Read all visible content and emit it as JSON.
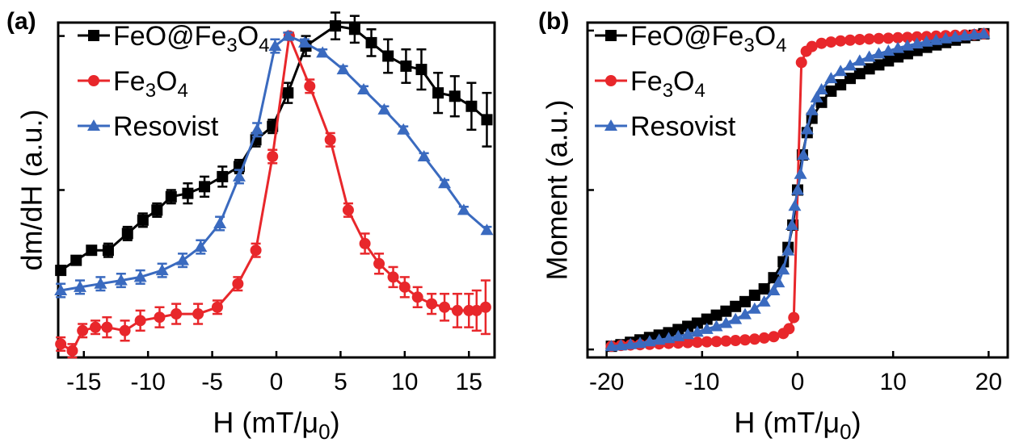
{
  "chart_data": [
    {
      "type": "line",
      "panel_label": "(a)",
      "xlabel": "H (mT/μ0)",
      "xlabel_parts": [
        "H (mT/μ",
        "0",
        ")"
      ],
      "ylabel": "dm/dH (a.u.)",
      "xlim": [
        -17,
        17
      ],
      "ylim": [
        0,
        1
      ],
      "xticks": [
        -15,
        -10,
        -5,
        0,
        5,
        10,
        15
      ],
      "xtick_labels": [
        "-15",
        "-10",
        "-5",
        "0",
        "5",
        "10",
        "15"
      ],
      "yticks": [
        0.0,
        0.5,
        0.96
      ],
      "ytick_labels_shown": false,
      "grid": false,
      "legend_position": "top-left",
      "series": [
        {
          "name": "FeO@Fe3O4",
          "name_parts": [
            "FeO@Fe",
            "3",
            "O",
            "4"
          ],
          "color": "#000000",
          "marker": "square",
          "x": [
            -16.8,
            -15.6,
            -14.4,
            -13.1,
            -11.6,
            -10.4,
            -9.3,
            -8.2,
            -6.9,
            -5.6,
            -4.2,
            -2.9,
            -1.6,
            -0.3,
            0.9,
            2.3,
            4.6,
            6.1,
            7.4,
            8.7,
            10.1,
            11.3,
            12.6,
            13.9,
            15.2,
            16.4
          ],
          "y": [
            0.26,
            0.29,
            0.32,
            0.32,
            0.37,
            0.41,
            0.44,
            0.48,
            0.49,
            0.51,
            0.54,
            0.57,
            0.65,
            0.69,
            0.79,
            0.93,
            0.99,
            0.98,
            0.94,
            0.9,
            0.87,
            0.86,
            0.79,
            0.78,
            0.75,
            0.71
          ],
          "err": [
            0.01,
            0.01,
            0.01,
            0.02,
            0.02,
            0.02,
            0.02,
            0.02,
            0.03,
            0.03,
            0.03,
            0.02,
            0.02,
            0.02,
            0.03,
            0.03,
            0.04,
            0.04,
            0.04,
            0.05,
            0.05,
            0.06,
            0.06,
            0.06,
            0.07,
            0.08
          ]
        },
        {
          "name": "Fe3O4",
          "name_parts": [
            "Fe",
            "3",
            "O",
            "4"
          ],
          "color": "#e8272b",
          "marker": "circle",
          "x": [
            -16.8,
            -15.9,
            -15.1,
            -14.1,
            -13.2,
            -11.8,
            -10.6,
            -9.1,
            -7.8,
            -6.1,
            -4.6,
            -3.0,
            -1.6,
            -0.3,
            1.0,
            2.6,
            4.2,
            5.6,
            6.9,
            8.0,
            9.1,
            10.0,
            11.0,
            12.1,
            13.1,
            14.1,
            15.0,
            15.6,
            16.3
          ],
          "y": [
            0.04,
            0.02,
            0.08,
            0.09,
            0.09,
            0.08,
            0.11,
            0.12,
            0.13,
            0.13,
            0.15,
            0.22,
            0.32,
            0.6,
            0.96,
            0.81,
            0.65,
            0.44,
            0.34,
            0.28,
            0.24,
            0.21,
            0.18,
            0.16,
            0.15,
            0.14,
            0.14,
            0.14,
            0.15
          ],
          "err": [
            0.02,
            0.02,
            0.02,
            0.02,
            0.03,
            0.03,
            0.03,
            0.03,
            0.03,
            0.03,
            0.02,
            0.02,
            0.02,
            0.02,
            0.01,
            0.02,
            0.02,
            0.02,
            0.03,
            0.03,
            0.03,
            0.03,
            0.03,
            0.03,
            0.04,
            0.05,
            0.05,
            0.06,
            0.08
          ]
        },
        {
          "name": "Resovist",
          "name_parts": [
            "Resovist"
          ],
          "color": "#3a6abf",
          "marker": "triangle",
          "x": [
            -16.8,
            -15.3,
            -13.7,
            -12.1,
            -10.6,
            -8.9,
            -7.3,
            -5.9,
            -4.4,
            -2.9,
            -1.5,
            -0.1,
            0.9,
            2.2,
            3.6,
            5.2,
            6.8,
            8.4,
            9.9,
            11.5,
            13.1,
            14.6,
            16.4
          ],
          "y": [
            0.2,
            0.21,
            0.22,
            0.23,
            0.24,
            0.26,
            0.29,
            0.33,
            0.4,
            0.54,
            0.68,
            0.93,
            0.96,
            0.94,
            0.91,
            0.86,
            0.8,
            0.74,
            0.68,
            0.6,
            0.52,
            0.44,
            0.38
          ],
          "err": [
            0.02,
            0.02,
            0.02,
            0.02,
            0.02,
            0.02,
            0.02,
            0.02,
            0.02,
            0.02,
            0.02,
            0.02,
            0.01,
            0.01,
            0.01,
            0.01,
            0.01,
            0.01,
            0.01,
            0.01,
            0.01,
            0.01,
            0.01
          ]
        }
      ]
    },
    {
      "type": "line",
      "panel_label": "(b)",
      "xlabel": "H (mT/μ0)",
      "xlabel_parts": [
        "H (mT/μ",
        "0",
        ")"
      ],
      "ylabel": "Moment (a.u.)",
      "xlim": [
        -22,
        22
      ],
      "ylim": [
        -1.05,
        1.05
      ],
      "xticks": [
        -20,
        -10,
        0,
        10,
        20
      ],
      "xtick_labels": [
        "-20",
        "-10",
        "0",
        "10",
        "20"
      ],
      "yticks": [
        -1,
        0,
        1
      ],
      "ytick_labels_shown": false,
      "grid": false,
      "legend_position": "top-left",
      "series": [
        {
          "name": "FeO@Fe3O4",
          "name_parts": [
            "FeO@Fe",
            "3",
            "O",
            "4"
          ],
          "color": "#000000",
          "marker": "square",
          "x": [
            -19.5,
            -18.5,
            -17.5,
            -16.5,
            -15.5,
            -14.5,
            -13.5,
            -12.5,
            -11.5,
            -10.5,
            -9.5,
            -8.5,
            -7.5,
            -6.5,
            -5.5,
            -4.5,
            -3.5,
            -2.5,
            -1.5,
            -1.0,
            -0.5,
            0.0,
            0.5,
            1.0,
            1.5,
            2.5,
            3.5,
            4.5,
            5.5,
            6.5,
            7.5,
            8.5,
            9.5,
            10.5,
            11.5,
            12.5,
            13.5,
            14.5,
            15.5,
            16.5,
            17.5,
            18.5,
            19.5
          ],
          "y": [
            -0.98,
            -0.97,
            -0.955,
            -0.94,
            -0.925,
            -0.91,
            -0.895,
            -0.875,
            -0.855,
            -0.835,
            -0.81,
            -0.785,
            -0.76,
            -0.73,
            -0.7,
            -0.66,
            -0.62,
            -0.55,
            -0.45,
            -0.36,
            -0.22,
            0.0,
            0.22,
            0.36,
            0.45,
            0.55,
            0.62,
            0.66,
            0.7,
            0.73,
            0.76,
            0.785,
            0.81,
            0.835,
            0.855,
            0.875,
            0.895,
            0.91,
            0.925,
            0.94,
            0.955,
            0.97,
            0.98
          ]
        },
        {
          "name": "Fe3O4",
          "name_parts": [
            "Fe",
            "3",
            "O",
            "4"
          ],
          "color": "#e8272b",
          "marker": "circle",
          "x": [
            -19.5,
            -18.5,
            -17.5,
            -16.5,
            -15.5,
            -14.5,
            -13.5,
            -12.5,
            -11.5,
            -10.5,
            -9.5,
            -8.5,
            -7.5,
            -6.5,
            -5.5,
            -4.5,
            -3.5,
            -2.5,
            -1.5,
            -0.9,
            -0.4,
            0.4,
            0.9,
            1.5,
            2.5,
            3.5,
            4.5,
            5.5,
            6.5,
            7.5,
            8.5,
            9.5,
            10.5,
            11.5,
            12.5,
            13.5,
            14.5,
            15.5,
            16.5,
            17.5,
            18.5,
            19.5
          ],
          "y": [
            -0.98,
            -0.975,
            -0.972,
            -0.97,
            -0.968,
            -0.965,
            -0.962,
            -0.96,
            -0.957,
            -0.955,
            -0.952,
            -0.95,
            -0.947,
            -0.944,
            -0.94,
            -0.935,
            -0.928,
            -0.92,
            -0.9,
            -0.87,
            -0.8,
            0.8,
            0.87,
            0.9,
            0.92,
            0.928,
            0.935,
            0.94,
            0.944,
            0.947,
            0.95,
            0.952,
            0.955,
            0.957,
            0.96,
            0.962,
            0.965,
            0.968,
            0.97,
            0.972,
            0.975,
            0.98
          ]
        },
        {
          "name": "Resovist",
          "name_parts": [
            "Resovist"
          ],
          "color": "#3a6abf",
          "marker": "triangle",
          "x": [
            -19.5,
            -18.5,
            -17.5,
            -16.5,
            -15.5,
            -14.5,
            -13.5,
            -12.5,
            -11.5,
            -10.5,
            -9.5,
            -8.5,
            -7.5,
            -6.5,
            -5.5,
            -4.5,
            -3.5,
            -2.5,
            -2.0,
            -1.5,
            -1.0,
            -0.6,
            -0.3,
            0.0,
            0.3,
            0.6,
            1.0,
            1.5,
            2.0,
            2.5,
            3.5,
            4.5,
            5.5,
            6.5,
            7.5,
            8.5,
            9.5,
            10.5,
            11.5,
            12.5,
            13.5,
            14.5,
            15.5,
            16.5,
            17.5,
            18.5,
            19.5
          ],
          "y": [
            -0.98,
            -0.975,
            -0.968,
            -0.96,
            -0.95,
            -0.94,
            -0.93,
            -0.918,
            -0.905,
            -0.89,
            -0.872,
            -0.855,
            -0.835,
            -0.81,
            -0.78,
            -0.745,
            -0.7,
            -0.63,
            -0.58,
            -0.5,
            -0.38,
            -0.22,
            -0.1,
            0.0,
            0.1,
            0.22,
            0.38,
            0.5,
            0.58,
            0.63,
            0.7,
            0.745,
            0.78,
            0.81,
            0.835,
            0.855,
            0.872,
            0.89,
            0.905,
            0.918,
            0.93,
            0.94,
            0.95,
            0.96,
            0.968,
            0.975,
            0.98
          ]
        }
      ]
    }
  ]
}
